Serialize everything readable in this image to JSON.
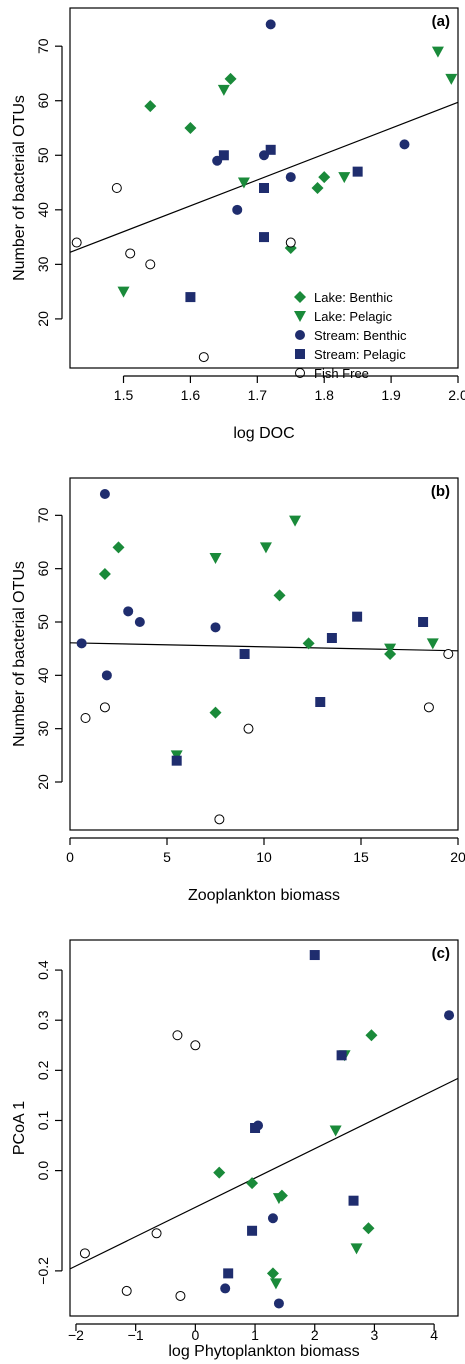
{
  "colors": {
    "lake": "#1a8a3a",
    "stream": "#1f2d6e",
    "fish_free_fill": "#ffffff",
    "fish_free_stroke": "#000000"
  },
  "legend": {
    "placement": "bottom-right of panel (a)",
    "entries": [
      {
        "key": "lake_benthic",
        "label": "Lake: Benthic",
        "shape": "diamond",
        "color": "#1a8a3a"
      },
      {
        "key": "lake_pelagic",
        "label": "Lake: Pelagic",
        "shape": "triangle-down",
        "color": "#1a8a3a"
      },
      {
        "key": "stream_benthic",
        "label": "Stream: Benthic",
        "shape": "circle",
        "color": "#1f2d6e"
      },
      {
        "key": "stream_pelagic",
        "label": "Stream: Pelagic",
        "shape": "square",
        "color": "#1f2d6e"
      },
      {
        "key": "fish_free",
        "label": "Fish Free",
        "shape": "circle-open",
        "color": "#000000"
      }
    ]
  },
  "chart_data": [
    {
      "type": "scatter",
      "panel_label": "(a)",
      "xlabel": "log DOC",
      "ylabel": "Number of bacterial OTUs",
      "xlim": [
        1.42,
        2.0
      ],
      "ylim": [
        11,
        77
      ],
      "xticks": [
        1.5,
        1.6,
        1.7,
        1.8,
        1.9,
        2.0
      ],
      "xtick_labels": [
        "1.5",
        "1.6",
        "1.7",
        "1.8",
        "1.9",
        "2.0"
      ],
      "yticks": [
        20,
        30,
        40,
        50,
        60,
        70
      ],
      "ytick_labels": [
        "20",
        "30",
        "40",
        "50",
        "60",
        "70"
      ],
      "fit_line": {
        "x": [
          1.42,
          2.0
        ],
        "y": [
          32.2,
          59.7
        ]
      },
      "series": {
        "lake_benthic": [
          [
            1.54,
            59
          ],
          [
            1.6,
            55
          ],
          [
            1.66,
            64
          ],
          [
            1.75,
            33
          ],
          [
            1.79,
            44
          ],
          [
            1.8,
            46
          ]
        ],
        "lake_pelagic": [
          [
            1.5,
            25
          ],
          [
            1.65,
            62
          ],
          [
            1.68,
            45
          ],
          [
            1.83,
            46
          ],
          [
            1.97,
            69
          ],
          [
            1.99,
            64
          ]
        ],
        "stream_benthic": [
          [
            1.64,
            49
          ],
          [
            1.67,
            40
          ],
          [
            1.71,
            50
          ],
          [
            1.72,
            74
          ],
          [
            1.75,
            46
          ],
          [
            1.92,
            52
          ]
        ],
        "stream_pelagic": [
          [
            1.6,
            24
          ],
          [
            1.65,
            50
          ],
          [
            1.71,
            44
          ],
          [
            1.71,
            35
          ],
          [
            1.72,
            51
          ],
          [
            1.85,
            47
          ]
        ],
        "fish_free": [
          [
            1.43,
            34
          ],
          [
            1.49,
            44
          ],
          [
            1.51,
            32
          ],
          [
            1.54,
            30
          ],
          [
            1.62,
            13
          ],
          [
            1.75,
            34
          ]
        ]
      }
    },
    {
      "type": "scatter",
      "panel_label": "(b)",
      "xlabel": "Zooplankton biomass",
      "ylabel": "Number of bacterial OTUs",
      "xlim": [
        0,
        20
      ],
      "ylim": [
        11,
        77
      ],
      "xticks": [
        0,
        5,
        10,
        15,
        20
      ],
      "xtick_labels": [
        "0",
        "5",
        "10",
        "15",
        "20"
      ],
      "yticks": [
        20,
        30,
        40,
        50,
        60,
        70
      ],
      "ytick_labels": [
        "20",
        "30",
        "40",
        "50",
        "60",
        "70"
      ],
      "fit_line": {
        "x": [
          0,
          20
        ],
        "y": [
          46.1,
          44.6
        ]
      },
      "series": {
        "lake_benthic": [
          [
            1.8,
            59
          ],
          [
            2.5,
            64
          ],
          [
            7.5,
            33
          ],
          [
            10.8,
            55
          ],
          [
            12.3,
            46
          ],
          [
            16.5,
            44
          ]
        ],
        "lake_pelagic": [
          [
            5.5,
            25
          ],
          [
            7.5,
            62
          ],
          [
            10.1,
            64
          ],
          [
            11.6,
            69
          ],
          [
            16.5,
            45
          ],
          [
            18.7,
            46
          ]
        ],
        "stream_benthic": [
          [
            0.6,
            46
          ],
          [
            1.8,
            74
          ],
          [
            1.9,
            40
          ],
          [
            3.0,
            52
          ],
          [
            3.6,
            50
          ],
          [
            7.5,
            49
          ]
        ],
        "stream_pelagic": [
          [
            5.5,
            24
          ],
          [
            9.0,
            44
          ],
          [
            12.9,
            35
          ],
          [
            13.5,
            47
          ],
          [
            14.8,
            51
          ],
          [
            18.2,
            50
          ]
        ],
        "fish_free": [
          [
            0.8,
            32
          ],
          [
            1.8,
            34
          ],
          [
            7.7,
            13
          ],
          [
            9.2,
            30
          ],
          [
            18.5,
            34
          ],
          [
            19.5,
            44
          ]
        ]
      }
    },
    {
      "type": "scatter",
      "panel_label": "(c)",
      "xlabel": "log Phytoplankton biomass",
      "ylabel": "PCoA 1",
      "xlim": [
        -2.1,
        4.4
      ],
      "ylim": [
        -0.29,
        0.46
      ],
      "xticks": [
        -2,
        -1,
        0,
        1,
        2,
        3,
        4
      ],
      "xtick_labels": [
        "−2",
        "−1",
        "0",
        "1",
        "2",
        "3",
        "4"
      ],
      "yticks": [
        -0.2,
        0.0,
        0.1,
        0.2,
        0.3,
        0.4
      ],
      "ytick_labels": [
        "−0.2",
        "0.0",
        "0.1",
        "0.2",
        "0.3",
        "0.4"
      ],
      "fit_line": {
        "x": [
          -2.1,
          4.4
        ],
        "y": [
          -0.196,
          0.184
        ]
      },
      "series": {
        "lake_benthic": [
          [
            0.4,
            -0.004
          ],
          [
            0.95,
            -0.025
          ],
          [
            1.3,
            -0.205
          ],
          [
            1.45,
            -0.05
          ],
          [
            2.9,
            -0.115
          ],
          [
            2.95,
            0.27
          ]
        ],
        "lake_pelagic": [
          [
            1.35,
            -0.225
          ],
          [
            1.4,
            -0.055
          ],
          [
            2.35,
            0.08
          ],
          [
            2.5,
            0.23
          ],
          [
            2.7,
            -0.155
          ]
        ],
        "stream_benthic": [
          [
            0.5,
            -0.235
          ],
          [
            1.05,
            0.09
          ],
          [
            1.3,
            -0.095
          ],
          [
            1.4,
            -0.265
          ],
          [
            4.25,
            0.31
          ]
        ],
        "stream_pelagic": [
          [
            0.55,
            -0.205
          ],
          [
            0.95,
            -0.12
          ],
          [
            1.0,
            0.085
          ],
          [
            2.0,
            0.43
          ],
          [
            2.45,
            0.23
          ],
          [
            2.65,
            -0.06
          ]
        ],
        "fish_free": [
          [
            -1.85,
            -0.165
          ],
          [
            -1.15,
            -0.24
          ],
          [
            -0.65,
            -0.125
          ],
          [
            -0.3,
            0.27
          ],
          [
            -0.25,
            -0.25
          ],
          [
            0.0,
            0.25
          ]
        ]
      }
    }
  ]
}
